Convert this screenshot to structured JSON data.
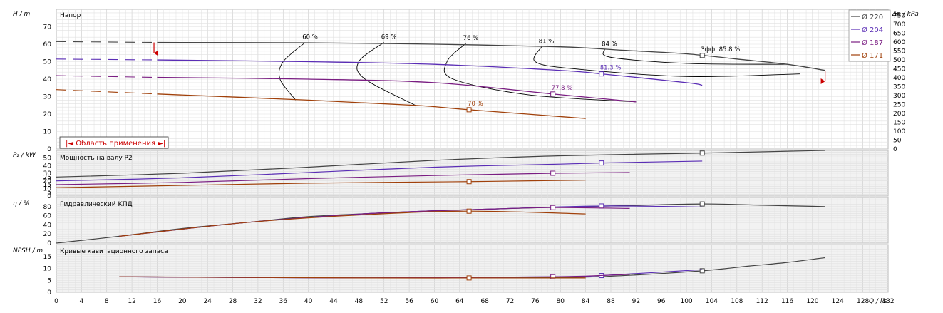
{
  "chart_data": {
    "type": "line",
    "x_label_text": "Q / l/s",
    "x_ticks": [
      0,
      4,
      8,
      12,
      16,
      20,
      24,
      28,
      32,
      36,
      40,
      44,
      48,
      52,
      56,
      60,
      64,
      68,
      72,
      76,
      80,
      84,
      88,
      92,
      96,
      100,
      104,
      108,
      112,
      116,
      120,
      124,
      128,
      132
    ],
    "panels": [
      {
        "id": "head",
        "title": "Напор",
        "ylabel": "H / m",
        "ylabel2": "Δp / kPa",
        "ylim": [
          0,
          80
        ],
        "yticks": [
          0,
          10,
          20,
          30,
          40,
          50,
          60,
          70
        ],
        "y2ticks": [
          0,
          50,
          100,
          150,
          200,
          250,
          300,
          350,
          400,
          450,
          500,
          550,
          600,
          650,
          700,
          750
        ],
        "range_label": "|◄ Область применения ►|"
      },
      {
        "id": "power",
        "title": "Мощность на валу P2",
        "ylabel": "P₂ / kW",
        "ylim": [
          0,
          60
        ],
        "yticks": [
          0,
          5,
          10,
          15,
          20,
          25,
          30,
          40,
          50
        ]
      },
      {
        "id": "eff",
        "title": "Гидравлический КПД",
        "ylabel": "η / %",
        "ylim": [
          0,
          100
        ],
        "yticks": [
          0,
          20,
          40,
          60,
          80
        ]
      },
      {
        "id": "npsh",
        "title": "Кривые кавитационного запаса",
        "ylabel": "NPSH / m",
        "ylim": [
          0,
          20
        ],
        "yticks": [
          0,
          5,
          10,
          15
        ]
      }
    ],
    "legend": [
      "Ø 220",
      "Ø 204",
      "Ø 187",
      "Ø 171"
    ],
    "colors": {
      "d220": "#444444",
      "d204": "#5a2db5",
      "d187": "#7a1d82",
      "d171": "#a0400a",
      "iso": "#000000",
      "range": "#cc0000"
    },
    "series": [
      {
        "name": "Ø 220",
        "head": [
          [
            16,
            61
          ],
          [
            40,
            60.8
          ],
          [
            60,
            60
          ],
          [
            80,
            58.5
          ],
          [
            90,
            56.5
          ],
          [
            100,
            54.5
          ],
          [
            108,
            51.5
          ],
          [
            116,
            48.5
          ],
          [
            122,
            45
          ]
        ],
        "head_dashed": [
          [
            0,
            61.5
          ],
          [
            16,
            61
          ]
        ],
        "power": [
          [
            0,
            25
          ],
          [
            20,
            30
          ],
          [
            40,
            38
          ],
          [
            60,
            47
          ],
          [
            80,
            53
          ],
          [
            102.5,
            56.5
          ],
          [
            122,
            60
          ]
        ],
        "eff": [
          [
            0,
            0
          ],
          [
            10,
            15
          ],
          [
            20,
            32
          ],
          [
            30,
            45
          ],
          [
            40,
            58
          ],
          [
            50,
            65
          ],
          [
            60,
            71
          ],
          [
            70,
            75
          ],
          [
            80,
            79
          ],
          [
            90,
            82
          ],
          [
            102.5,
            85.8
          ],
          [
            112,
            83
          ],
          [
            122,
            80
          ]
        ],
        "npsh": [
          [
            10,
            6.5
          ],
          [
            50,
            6
          ],
          [
            80,
            6.2
          ],
          [
            90,
            7
          ],
          [
            102.5,
            9
          ],
          [
            110,
            11
          ],
          [
            116,
            12.5
          ],
          [
            122,
            14.5
          ]
        ],
        "bep": {
          "q": 102.5,
          "label": "Зфф. 85.8 %"
        }
      },
      {
        "name": "Ø 204",
        "head": [
          [
            16,
            51
          ],
          [
            40,
            50
          ],
          [
            60,
            48.5
          ],
          [
            80,
            45
          ],
          [
            86.5,
            43
          ],
          [
            100,
            38
          ],
          [
            102.5,
            36.5
          ]
        ],
        "head_dashed": [
          [
            0,
            51.5
          ],
          [
            16,
            51
          ]
        ],
        "power": [
          [
            0,
            20
          ],
          [
            20,
            24
          ],
          [
            40,
            31
          ],
          [
            60,
            38
          ],
          [
            80,
            42
          ],
          [
            86.5,
            43.5
          ],
          [
            102.5,
            46
          ]
        ],
        "eff": [
          [
            10,
            15
          ],
          [
            30,
            45
          ],
          [
            50,
            65
          ],
          [
            70,
            75
          ],
          [
            86.5,
            81.3
          ],
          [
            102.5,
            79
          ]
        ],
        "npsh": [
          [
            10,
            6.5
          ],
          [
            50,
            6
          ],
          [
            80,
            6.5
          ],
          [
            86.5,
            7
          ],
          [
            102.5,
            9.5
          ]
        ],
        "bep": {
          "q": 86.5,
          "label": "81.3 %"
        }
      },
      {
        "name": "Ø 187",
        "head": [
          [
            16,
            41
          ],
          [
            40,
            40
          ],
          [
            60,
            38
          ],
          [
            78.8,
            31.5
          ],
          [
            92,
            27
          ]
        ],
        "head_dashed": [
          [
            0,
            42
          ],
          [
            16,
            41
          ]
        ],
        "power": [
          [
            0,
            15
          ],
          [
            20,
            18
          ],
          [
            40,
            23
          ],
          [
            60,
            27
          ],
          [
            78.8,
            30
          ],
          [
            91,
            31
          ]
        ],
        "eff": [
          [
            10,
            15
          ],
          [
            30,
            45
          ],
          [
            50,
            65
          ],
          [
            70,
            75
          ],
          [
            78.8,
            77.8
          ],
          [
            91,
            76
          ]
        ],
        "npsh": [
          [
            10,
            6.5
          ],
          [
            50,
            6
          ],
          [
            78.8,
            6.5
          ],
          [
            91,
            7.5
          ]
        ],
        "bep": {
          "q": 78.8,
          "label": "77.8 %"
        }
      },
      {
        "name": "Ø 171",
        "head": [
          [
            16,
            31.5
          ],
          [
            40,
            28
          ],
          [
            57,
            25
          ],
          [
            65.5,
            22.5
          ],
          [
            84,
            17.5
          ]
        ],
        "head_dashed": [
          [
            0,
            34
          ],
          [
            16,
            31.5
          ]
        ],
        "power": [
          [
            0,
            11
          ],
          [
            20,
            14
          ],
          [
            40,
            17
          ],
          [
            65.5,
            19
          ],
          [
            84,
            21
          ]
        ],
        "eff": [
          [
            10,
            15
          ],
          [
            30,
            45
          ],
          [
            50,
            63
          ],
          [
            65.5,
            70
          ],
          [
            84,
            64
          ]
        ],
        "npsh": [
          [
            10,
            6.5
          ],
          [
            50,
            6
          ],
          [
            65.5,
            6
          ],
          [
            84,
            6
          ]
        ],
        "bep": {
          "q": 65.5,
          "label": "70 %"
        }
      }
    ],
    "iso_efficiency": [
      {
        "label": "60 %",
        "pts": [
          [
            39.5,
            61
          ],
          [
            36,
            50
          ],
          [
            35.5,
            40
          ],
          [
            38,
            28
          ]
        ]
      },
      {
        "label": "69 %",
        "pts": [
          [
            52,
            61
          ],
          [
            48,
            50
          ],
          [
            49,
            40
          ],
          [
            57,
            25
          ]
        ]
      },
      {
        "label": "76 %",
        "pts": [
          [
            65,
            60.5
          ],
          [
            62,
            50
          ],
          [
            63,
            40
          ],
          [
            75,
            31
          ],
          [
            92,
            27
          ]
        ]
      },
      {
        "label": "81 %",
        "pts": [
          [
            77,
            58.5
          ],
          [
            76,
            50
          ],
          [
            82,
            46
          ],
          [
            100,
            41.5
          ],
          [
            118,
            43
          ]
        ]
      },
      {
        "label": "84 %",
        "pts": [
          [
            87,
            57
          ],
          [
            88,
            52.5
          ],
          [
            100,
            49
          ],
          [
            116,
            48.5
          ]
        ]
      }
    ],
    "application_range": {
      "q_min": 15.5,
      "q_max": 122,
      "h_top": 61,
      "h_bottom": 44.5
    }
  }
}
